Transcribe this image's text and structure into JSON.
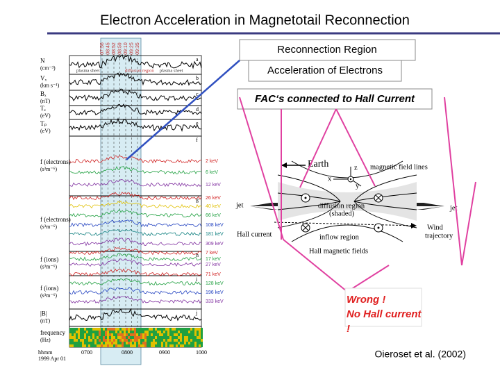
{
  "title": "Electron Acceleration in Magnetotail Reconnection",
  "callouts": [
    "Reconnection Region",
    "Acceleration of Electrons",
    "FAC‘s connected to Hall Current"
  ],
  "annotation": [
    "Wrong !",
    "No Hall current",
    "!"
  ],
  "citation": "Oieroset et al. (2002)",
  "figure": {
    "top_times": [
      "07:56",
      "08:45",
      "08:52",
      "08:59",
      "09:10",
      "09:25",
      "09:35"
    ],
    "region_labels": [
      "plasma sheet",
      "diffusion region",
      "plasma sheet"
    ],
    "panels": [
      {
        "label": "N",
        "unit": "(cm⁻³)",
        "letter": "a"
      },
      {
        "label": "Vₓ",
        "unit": "(km s⁻¹)",
        "letter": "b"
      },
      {
        "label": "Bₓ",
        "unit": "(nT)",
        "letter": "c"
      },
      {
        "label": "Tₑ",
        "unit": "(eV)",
        "letter": "d"
      },
      {
        "label": "Tₚ",
        "unit": "(eV)",
        "letter": "e"
      },
      {
        "label": "f (electrons)",
        "unit": "(s³m⁻⁶)",
        "letter": "f"
      },
      {
        "label": "f (electrons)",
        "unit": "(s³m⁻⁶)",
        "letter": "g"
      },
      {
        "label": "f (ions)",
        "unit": "(s³m⁻⁶)",
        "letter": "h"
      },
      {
        "label": "f (ions)",
        "unit": "(s³m⁻⁶)",
        "letter": "i"
      },
      {
        "label": "|B|",
        "unit": "(nT)",
        "letter": "j"
      },
      {
        "label": "frequency",
        "unit": "(Hz)",
        "letter": "k"
      }
    ],
    "energy_labels": [
      {
        "text": "2 keV",
        "color": "#d02020"
      },
      {
        "text": "6 keV",
        "color": "#20a040"
      },
      {
        "text": "12 keV",
        "color": "#8030a0"
      },
      {
        "text": "26 keV",
        "color": "#d02020"
      },
      {
        "text": "40 keV",
        "color": "#e0c000"
      },
      {
        "text": "66 keV",
        "color": "#20a040"
      },
      {
        "text": "108 keV",
        "color": "#2040c0"
      },
      {
        "text": "181 keV",
        "color": "#108080"
      },
      {
        "text": "309 keV",
        "color": "#8030a0"
      },
      {
        "text": "7 keV",
        "color": "#d02020"
      },
      {
        "text": "17 keV",
        "color": "#20a040"
      },
      {
        "text": "27 keV",
        "color": "#8030a0"
      },
      {
        "text": "71 keV",
        "color": "#d02020"
      },
      {
        "text": "128 keV",
        "color": "#20a040"
      },
      {
        "text": "196 keV",
        "color": "#2040c0"
      },
      {
        "text": "333 keV",
        "color": "#8030a0"
      }
    ],
    "time_labels": [
      "0700",
      "0800",
      "0900",
      "1000"
    ],
    "time_unit": "hhmm",
    "date": "1999 Apr 01"
  },
  "diagram": {
    "earth": "Earth",
    "field_lines": "magnetic field lines",
    "axes": [
      "x",
      "y",
      "z"
    ],
    "jet_left": "jet",
    "jet_right": "jet",
    "diffusion": [
      "diffusion region",
      "(shaded)"
    ],
    "inflow": "inflow region",
    "hall_current": "Hall current",
    "wind": [
      "Wind",
      "trajectory"
    ],
    "hall_fields": "Hall magnetic fields"
  }
}
